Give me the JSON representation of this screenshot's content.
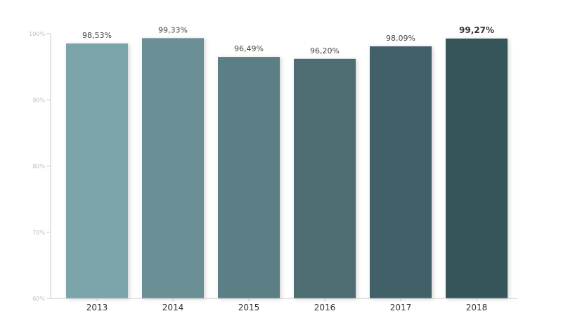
{
  "chart_data": {
    "type": "bar",
    "categories": [
      "2013",
      "2014",
      "2015",
      "2016",
      "2017",
      "2018"
    ],
    "values": [
      98.53,
      99.33,
      96.49,
      96.2,
      98.09,
      99.27
    ],
    "data_labels": [
      "98,53%",
      "99,33%",
      "96,49%",
      "96,20%",
      "98,09%",
      "99,27%"
    ],
    "highlight_index": 5,
    "bar_colors": [
      "#7ba4ab",
      "#6a9096",
      "#5b7e85",
      "#4e6d73",
      "#436168",
      "#34545a"
    ],
    "ylim": [
      60,
      100
    ],
    "yticks": [
      60,
      70,
      80,
      90,
      100
    ],
    "ytick_labels": [
      "60%",
      "70%",
      "80%",
      "90%",
      "100%"
    ],
    "title": "",
    "xlabel": "",
    "ylabel": "",
    "grid": false,
    "axis_color": "#c8c8c8"
  }
}
